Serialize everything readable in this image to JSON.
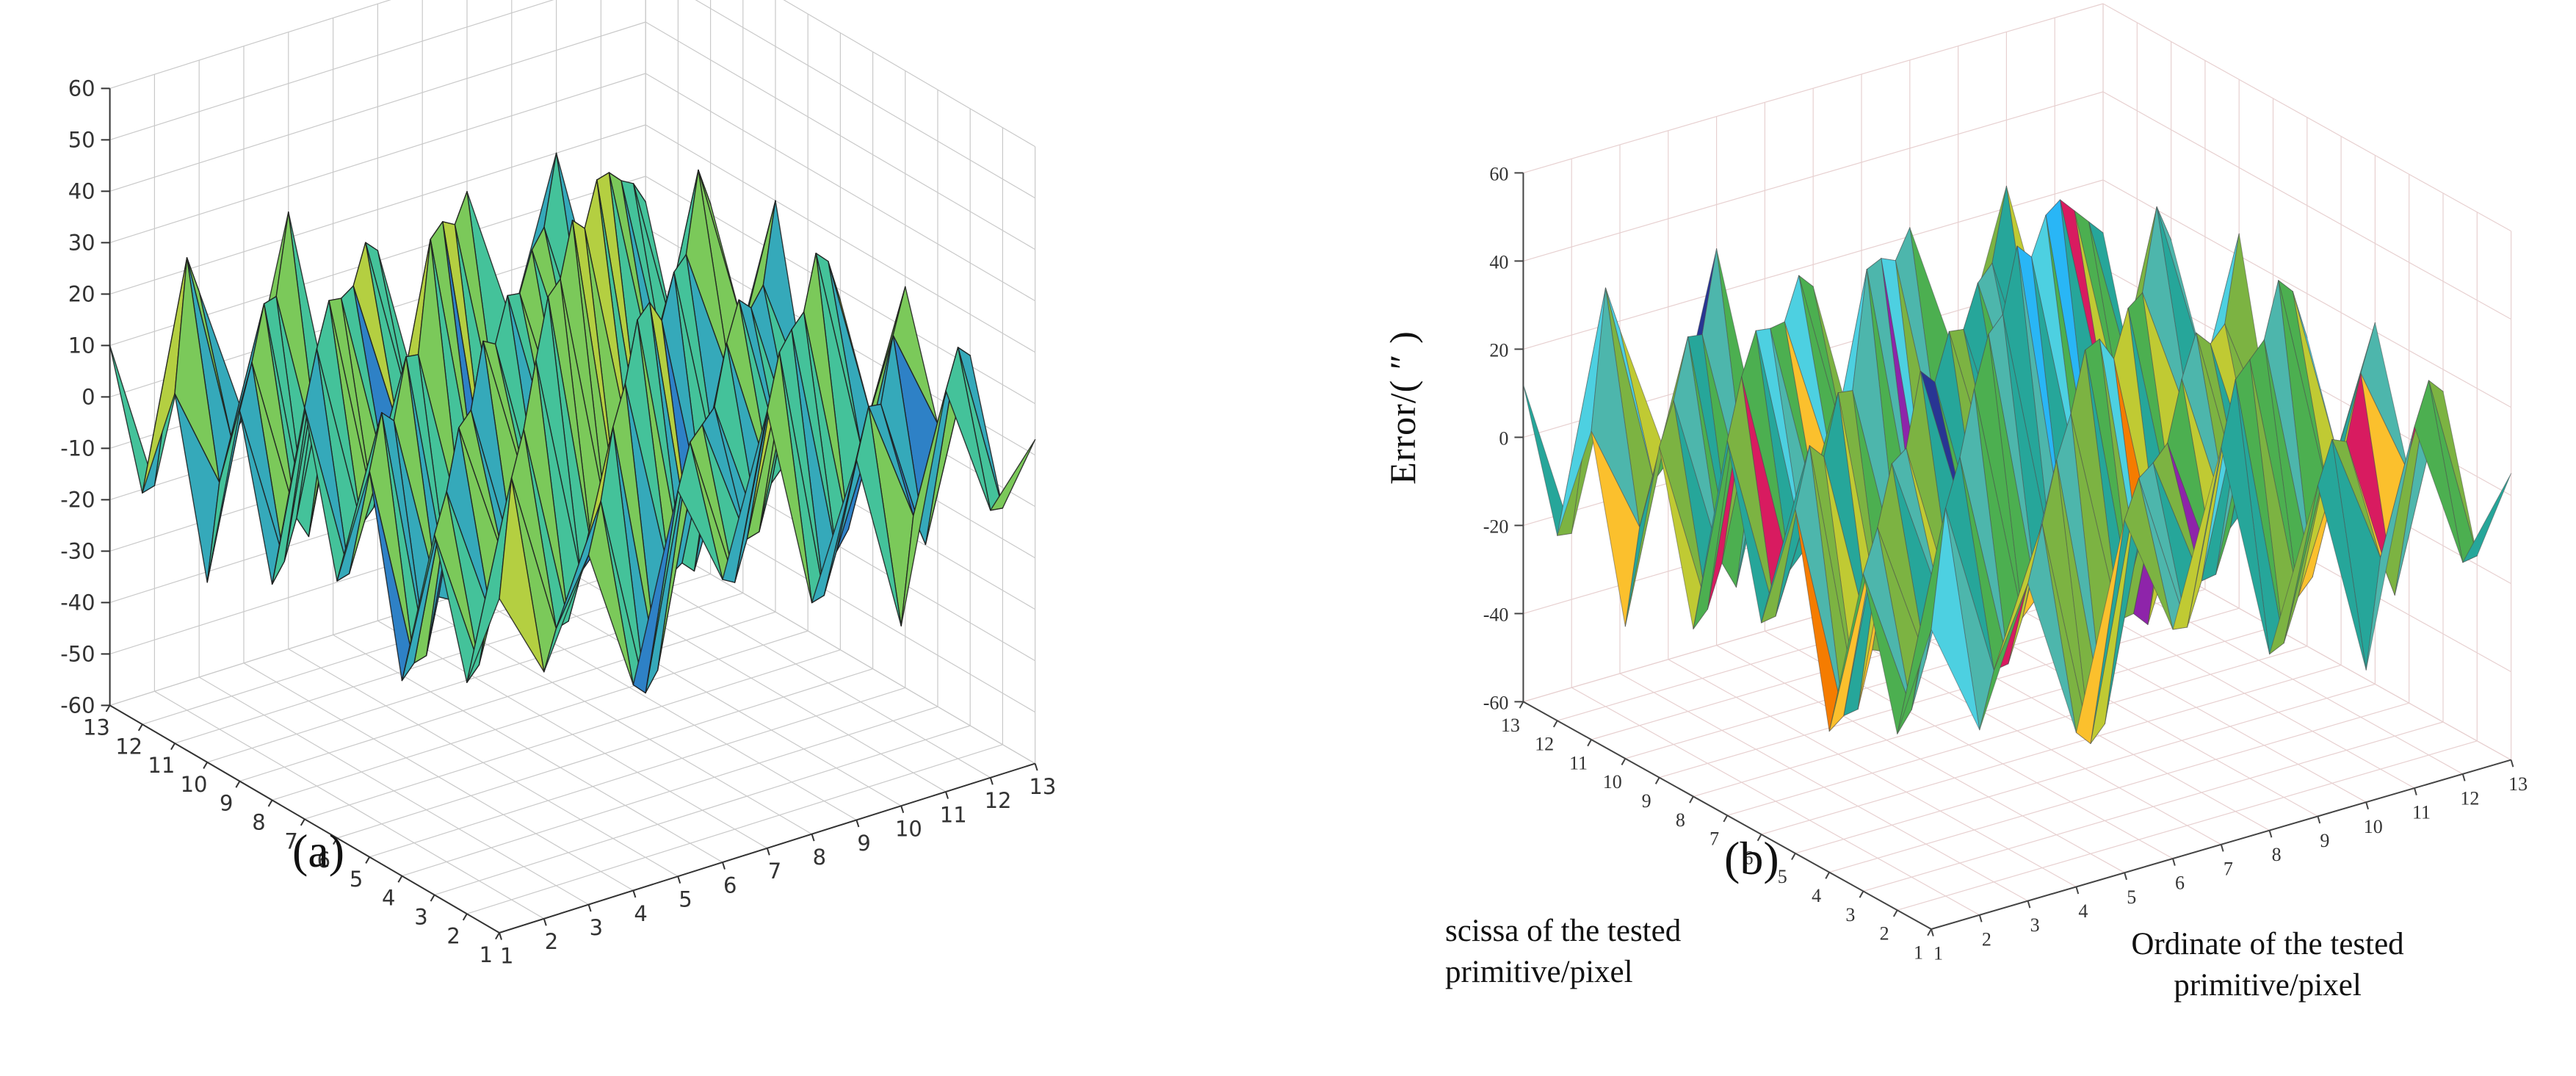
{
  "figure": {
    "background": "#ffffff",
    "panel_count": 2
  },
  "chart_data": [
    {
      "type": "surface3d",
      "panel": "a",
      "caption": "(a)",
      "zlim": [
        -60,
        60
      ],
      "grid": true,
      "z_tick_labels": [
        60,
        50,
        40,
        30,
        20,
        10,
        0,
        -10,
        -20,
        -30,
        -40,
        -50,
        -60
      ],
      "x_tick_labels": [
        13,
        12,
        11,
        10,
        9,
        8,
        7,
        6,
        5,
        4,
        3,
        2,
        1
      ],
      "y_tick_labels": [
        1,
        2,
        3,
        4,
        5,
        6,
        7,
        8,
        9,
        10,
        11,
        12,
        13
      ],
      "grid_color": "#c9c9c9",
      "axis_color": "#333333",
      "tick_color": "#333333",
      "edge_color": "#1c1c1c",
      "colormap": [
        "#26309b",
        "#2d53c4",
        "#2e81c6",
        "#35a9ba",
        "#44c29a",
        "#7bc95a",
        "#b4cf41",
        "#e2cd33",
        "#f0b43a"
      ],
      "z_values": [
        [
          5,
          -12,
          8,
          -20,
          15,
          -5,
          25,
          -15,
          10,
          -25,
          18,
          -8,
          3
        ],
        [
          -15,
          22,
          -10,
          12,
          -28,
          18,
          -12,
          30,
          -20,
          14,
          -10,
          20,
          -14
        ],
        [
          10,
          -18,
          25,
          -15,
          20,
          -30,
          15,
          -10,
          28,
          -18,
          8,
          -22,
          12
        ],
        [
          -22,
          12,
          -15,
          32,
          -12,
          22,
          -18,
          12,
          -15,
          25,
          -20,
          15,
          -5
        ],
        [
          15,
          -25,
          18,
          -10,
          38,
          -15,
          28,
          -22,
          18,
          -12,
          30,
          -10,
          18
        ],
        [
          -10,
          20,
          -30,
          15,
          -18,
          35,
          -12,
          25,
          -30,
          20,
          -15,
          22,
          -12
        ],
        [
          20,
          -15,
          12,
          -25,
          22,
          -10,
          40,
          -18,
          15,
          -28,
          12,
          -18,
          8
        ],
        [
          -18,
          25,
          -12,
          18,
          -32,
          15,
          -20,
          32,
          -12,
          18,
          -25,
          10,
          -15
        ],
        [
          12,
          -20,
          28,
          -15,
          12,
          -25,
          18,
          -15,
          35,
          -20,
          15,
          -12,
          20
        ],
        [
          -25,
          15,
          -18,
          22,
          -15,
          28,
          -22,
          12,
          -18,
          30,
          -12,
          25,
          -8
        ],
        [
          8,
          -12,
          20,
          -28,
          18,
          -12,
          25,
          -30,
          14,
          -15,
          22,
          -18,
          12
        ],
        [
          -15,
          28,
          -10,
          15,
          -22,
          20,
          -15,
          18,
          -25,
          12,
          -18,
          15,
          -20
        ],
        [
          10,
          -20,
          15,
          -12,
          25,
          -18,
          12,
          -22,
          18,
          -10,
          20,
          -15,
          5
        ]
      ]
    },
    {
      "type": "surface3d",
      "panel": "b",
      "caption": "(b)",
      "z_axis_label": "Error/( ″ )",
      "x_axis_label": [
        "scissa of the tested",
        "primitive/pixel"
      ],
      "y_axis_label": [
        "Ordinate of the tested",
        "primitive/pixel"
      ],
      "zlim": [
        -60,
        60
      ],
      "grid": true,
      "z_tick_labels": [
        60,
        40,
        20,
        0,
        -20,
        -40,
        -60
      ],
      "x_tick_labels": [
        13,
        12,
        11,
        10,
        9,
        8,
        7,
        6,
        5,
        4,
        3,
        2,
        1
      ],
      "y_tick_labels": [
        1,
        2,
        3,
        4,
        5,
        6,
        7,
        8,
        9,
        10,
        11,
        12,
        13
      ],
      "grid_color": "#e7d0d0",
      "axis_color": "#444444",
      "tick_color": "#333333",
      "edge_color": "#4a4a4a",
      "colormap": [
        "#c62828",
        "#e64a19",
        "#f57c00",
        "#fbc02d",
        "#c0ca33",
        "#7cb342",
        "#4caf50",
        "#26a69a",
        "#4db6ac",
        "#4dd0e1",
        "#29b6f6",
        "#3f51b5",
        "#ab47bc"
      ],
      "accent_colors": [
        "#8e24aa",
        "#d81b60",
        "#283593"
      ],
      "z_values": [
        [
          8,
          -18,
          12,
          -25,
          20,
          -8,
          30,
          -20,
          15,
          -30,
          22,
          -12,
          5
        ],
        [
          -20,
          28,
          -12,
          18,
          -35,
          22,
          -15,
          38,
          -25,
          18,
          -12,
          25,
          -18
        ],
        [
          12,
          -22,
          32,
          -18,
          25,
          -38,
          18,
          -12,
          35,
          -22,
          10,
          -28,
          15
        ],
        [
          -28,
          15,
          -18,
          40,
          -15,
          28,
          -22,
          15,
          -18,
          32,
          -25,
          18,
          -8
        ],
        [
          18,
          -32,
          22,
          -12,
          45,
          -18,
          35,
          -28,
          22,
          -15,
          38,
          -12,
          22
        ],
        [
          -12,
          25,
          -38,
          18,
          -22,
          42,
          -15,
          30,
          -38,
          25,
          -18,
          28,
          -15
        ],
        [
          25,
          -18,
          15,
          -32,
          28,
          -12,
          50,
          -22,
          18,
          -35,
          15,
          -22,
          10
        ],
        [
          -22,
          32,
          -15,
          22,
          -40,
          18,
          -25,
          40,
          -15,
          22,
          -32,
          12,
          -18
        ],
        [
          15,
          -25,
          35,
          -18,
          15,
          -32,
          22,
          -18,
          42,
          -25,
          18,
          -15,
          25
        ],
        [
          -30,
          18,
          -22,
          28,
          -18,
          35,
          -28,
          15,
          -22,
          38,
          -15,
          30,
          -10
        ],
        [
          10,
          -15,
          25,
          -35,
          22,
          -15,
          30,
          -38,
          18,
          -18,
          28,
          -22,
          15
        ],
        [
          -18,
          35,
          -12,
          18,
          -28,
          25,
          -18,
          22,
          -30,
          15,
          -22,
          18,
          -25
        ],
        [
          12,
          -25,
          18,
          -15,
          30,
          -22,
          15,
          -28,
          22,
          -12,
          25,
          -18,
          8
        ]
      ]
    }
  ]
}
